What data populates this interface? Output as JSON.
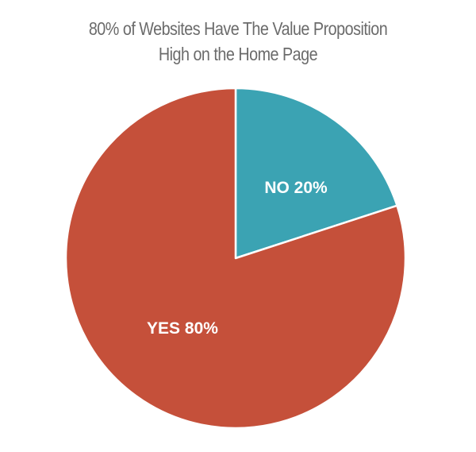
{
  "chart_data": {
    "type": "pie",
    "title_lines": [
      "80% of Websites Have The Value Proposition",
      "High on the Home Page"
    ],
    "slices": [
      {
        "category": "NO",
        "value": 20,
        "label": "NO 20%",
        "color": "#3ba3b3"
      },
      {
        "category": "YES",
        "value": 80,
        "label": "YES 80%",
        "color": "#c5503a"
      }
    ],
    "start_angle_deg": 0,
    "direction": "clockwise",
    "legend": "none"
  }
}
